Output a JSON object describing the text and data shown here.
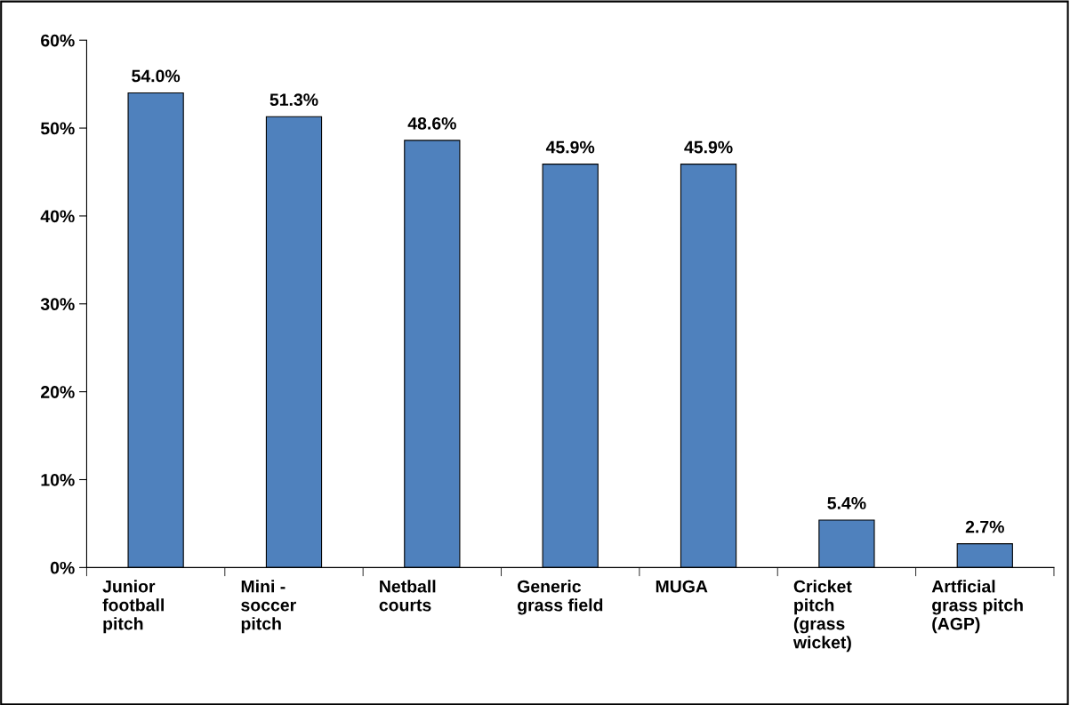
{
  "chart_data": {
    "type": "bar",
    "categories": [
      "Junior\nfootball\npitch",
      "Mini -\nsoccer\npitch",
      "Netball\ncourts",
      "Generic\ngrass field",
      "MUGA",
      "Cricket\npitch\n(grass\nwicket)",
      "Artficial\ngrass pitch\n(AGP)"
    ],
    "values": [
      54.0,
      51.3,
      48.6,
      45.9,
      45.9,
      5.4,
      2.7
    ],
    "value_labels": [
      "54.0%",
      "51.3%",
      "48.6%",
      "45.9%",
      "45.9%",
      "5.4%",
      "2.7%"
    ],
    "color": "#4f81bd",
    "ylim": [
      0,
      60
    ],
    "yticks": [
      {
        "value": 0,
        "label": "0%"
      },
      {
        "value": 10,
        "label": "10%"
      },
      {
        "value": 20,
        "label": "20%"
      },
      {
        "value": 30,
        "label": "30%"
      },
      {
        "value": 40,
        "label": "40%"
      },
      {
        "value": 50,
        "label": "50%"
      },
      {
        "value": 60,
        "label": "60%"
      }
    ],
    "grid": false,
    "legend": false
  }
}
